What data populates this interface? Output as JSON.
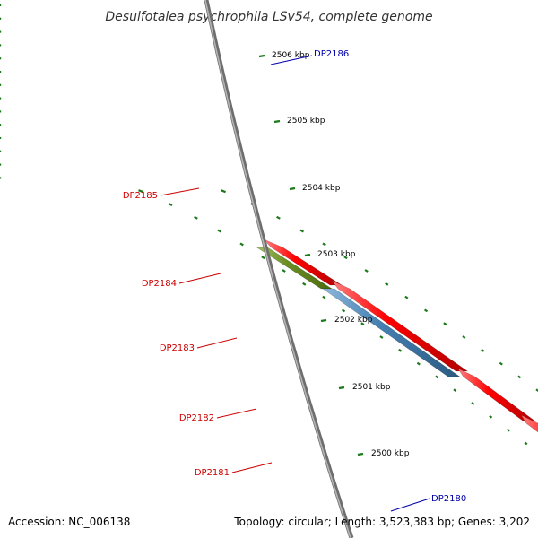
{
  "title": "Desulfotalea psychrophila LSv54, complete genome",
  "footer": {
    "accession": "Accession: NC_006138",
    "summary": "Topology: circular; Length: 3,523,383 bp; Genes: 3,202"
  },
  "colors": {
    "backbone": "#888888",
    "tick": "#1a7a1a",
    "label_left": "#cc0000",
    "label_right": "#0000aa",
    "red": "#ff0000",
    "blue": "#0000ee",
    "steelblue": "#4682b4",
    "gray": "#c0c0c0",
    "olive": "#6b8e23",
    "cyan": "#00e5ee",
    "pink": "#f4a0a0"
  },
  "ticks": [
    "2506 kbp",
    "2505 kbp",
    "2504 kbp",
    "2503 kbp",
    "2502 kbp",
    "2501 kbp",
    "2500 kbp"
  ],
  "gene_labels": [
    {
      "text": "DP2186",
      "side": "right"
    },
    {
      "text": "DP2185",
      "side": "left"
    },
    {
      "text": "DP2184",
      "side": "left"
    },
    {
      "text": "DP2183",
      "side": "left"
    },
    {
      "text": "DP2182",
      "side": "left"
    },
    {
      "text": "DP2181",
      "side": "left"
    },
    {
      "text": "DP2180",
      "side": "right"
    }
  ]
}
